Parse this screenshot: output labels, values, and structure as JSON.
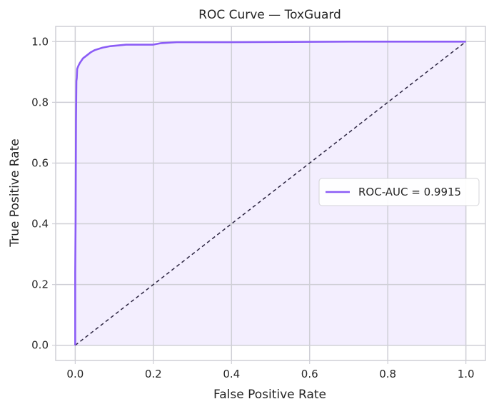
{
  "chart_data": {
    "type": "line",
    "title": "ROC Curve — ToxGuard",
    "xlabel": "False Positive Rate",
    "ylabel": "True Positive Rate",
    "xlim": [
      -0.05,
      1.05
    ],
    "ylim": [
      -0.05,
      1.05
    ],
    "x_ticks": [
      0.0,
      0.2,
      0.4,
      0.6,
      0.8,
      1.0
    ],
    "y_ticks": [
      0.0,
      0.2,
      0.4,
      0.6,
      0.8,
      1.0
    ],
    "x_tick_labels": [
      "0.0",
      "0.2",
      "0.4",
      "0.6",
      "0.8",
      "1.0"
    ],
    "y_tick_labels": [
      "0.0",
      "0.2",
      "0.4",
      "0.6",
      "0.8",
      "1.0"
    ],
    "grid": true,
    "legend_position": "center-right",
    "series": [
      {
        "name": "ROC-AUC = 0.9915",
        "color": "#8b5cf6",
        "fill": true,
        "x": [
          0.0,
          0.0,
          0.001,
          0.002,
          0.003,
          0.004,
          0.005,
          0.008,
          0.012,
          0.02,
          0.03,
          0.04,
          0.05,
          0.07,
          0.09,
          0.13,
          0.2,
          0.22,
          0.26,
          0.4,
          0.55,
          0.7,
          0.85,
          1.0
        ],
        "y": [
          0.0,
          0.24,
          0.41,
          0.74,
          0.87,
          0.88,
          0.91,
          0.92,
          0.93,
          0.945,
          0.955,
          0.965,
          0.972,
          0.98,
          0.985,
          0.99,
          0.99,
          0.995,
          0.998,
          0.998,
          0.999,
          1.0,
          1.0,
          1.0
        ]
      },
      {
        "name": "",
        "style": "dashed",
        "color": "#2b2440",
        "x": [
          0.0,
          1.0
        ],
        "y": [
          0.0,
          1.0
        ]
      }
    ]
  }
}
